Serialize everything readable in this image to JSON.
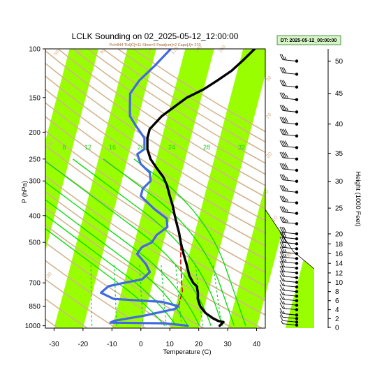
{
  "chart_data": {
    "type": "line",
    "title": "LCLK Sounding on 02_2025-05-12_12:00:00",
    "subtitle": "Pcl=844 Tlcl[C]=11 Shox=2 Pwat[cm]=2 Cape[J]= 270",
    "datetime_box": "DT: 2025-05-12_00:00:00",
    "xlabel": "Temperature (C)",
    "ylabel": "P (hPa)",
    "y2label": "Height (1000 Feet)",
    "xlim": [
      -33,
      43
    ],
    "ylim": [
      1020,
      100
    ],
    "y_scale": "log",
    "x_ticks": [
      -30,
      -20,
      -10,
      0,
      10,
      20,
      30,
      40
    ],
    "p_ticks": [
      100,
      150,
      200,
      250,
      300,
      400,
      500,
      700,
      850,
      1000
    ],
    "height_ticks": [
      0,
      2,
      4,
      6,
      8,
      10,
      12,
      14,
      16,
      18,
      20,
      25,
      30,
      35,
      40,
      45,
      50
    ],
    "mixing_ratio_labels": [
      "8",
      "12",
      "16",
      "20",
      "24",
      "28",
      "32"
    ],
    "dry_adiabat_labels": [
      "-30",
      "-10",
      "10",
      "30",
      "50",
      "70",
      "90",
      "110",
      "120",
      "140",
      "160"
    ],
    "moist_adiabat_labels": [
      "0",
      "10",
      "20",
      "30",
      "-30"
    ],
    "colors": {
      "temperature": "#000000",
      "dewpoint": "#4169e1",
      "parcel": "#d40000",
      "isotherm_band": "#99ff00",
      "dry_adiabat": "#d2b48c",
      "moist_adiabat": "#00dd00",
      "mixing_ratio": "#00cc33"
    },
    "series": [
      {
        "points": [
          [
            27,
            1000
          ],
          [
            27.5,
            985
          ],
          [
            28,
            970
          ],
          [
            26,
            960
          ],
          [
            24,
            940
          ],
          [
            21,
            900
          ],
          [
            18.5,
            850
          ],
          [
            17,
            800
          ],
          [
            16.5,
            760
          ],
          [
            15.5,
            720
          ],
          [
            14,
            700
          ],
          [
            12,
            660
          ],
          [
            10,
            600
          ],
          [
            8,
            550
          ],
          [
            6,
            500
          ],
          [
            4.5,
            460
          ],
          [
            3,
            430
          ],
          [
            1.5,
            400
          ],
          [
            0,
            370
          ],
          [
            -2,
            340
          ],
          [
            -4,
            310
          ],
          [
            -6,
            290
          ],
          [
            -9,
            270
          ],
          [
            -12,
            250
          ],
          [
            -14,
            230
          ],
          [
            -15,
            210
          ],
          [
            -15,
            195
          ],
          [
            -12,
            175
          ],
          [
            -8,
            160
          ],
          [
            -5,
            150
          ],
          [
            0,
            140
          ],
          [
            4,
            130
          ],
          [
            8,
            120
          ],
          [
            11,
            110
          ],
          [
            14,
            100
          ]
        ]
      },
      {
        "points": [
          [
            16,
            1000
          ],
          [
            8,
            980
          ],
          [
            -11,
            975
          ],
          [
            -10,
            960
          ],
          [
            0,
            920
          ],
          [
            10,
            870
          ],
          [
            11,
            850
          ],
          [
            5,
            820
          ],
          [
            -12,
            800
          ],
          [
            -17,
            760
          ],
          [
            -15,
            720
          ],
          [
            -10,
            700
          ],
          [
            -4,
            680
          ],
          [
            -2,
            640
          ],
          [
            -4,
            600
          ],
          [
            -8,
            550
          ],
          [
            -7,
            520
          ],
          [
            -4,
            500
          ],
          [
            -3,
            470
          ],
          [
            0,
            440
          ],
          [
            -1,
            410
          ],
          [
            -6,
            380
          ],
          [
            -12,
            340
          ],
          [
            -12,
            320
          ],
          [
            -10,
            300
          ],
          [
            -11,
            280
          ],
          [
            -15,
            260
          ],
          [
            -17,
            240
          ],
          [
            -15,
            230
          ],
          [
            -16,
            210
          ],
          [
            -20,
            190
          ],
          [
            -23,
            175
          ],
          [
            -24,
            160
          ],
          [
            -25,
            145
          ],
          [
            -23,
            130
          ],
          [
            -19,
            115
          ],
          [
            -15,
            100
          ]
        ]
      },
      {
        "points": [
          [
            11,
            844
          ],
          [
            11,
            800
          ],
          [
            11,
            750
          ],
          [
            10,
            700
          ],
          [
            8,
            600
          ],
          [
            6,
            500
          ],
          [
            4,
            450
          ],
          [
            2,
            410
          ],
          [
            0,
            380
          ]
        ]
      }
    ],
    "wind_barbs": {
      "heights_kft": [
        0.5,
        1.2,
        2,
        2.8,
        4,
        5,
        6,
        7,
        8,
        9,
        10,
        11,
        12,
        13,
        14,
        15,
        16,
        17,
        18,
        19,
        20,
        22,
        24,
        26,
        28,
        30,
        32,
        34,
        36,
        38,
        40,
        42,
        44,
        46,
        48,
        50
      ],
      "speed_kt": [
        5,
        10,
        10,
        15,
        15,
        15,
        15,
        15,
        15,
        15,
        15,
        20,
        20,
        20,
        25,
        25,
        25,
        25,
        30,
        30,
        30,
        35,
        35,
        35,
        35,
        35,
        40,
        40,
        40,
        40,
        40,
        35,
        35,
        30,
        30,
        25
      ]
    }
  }
}
